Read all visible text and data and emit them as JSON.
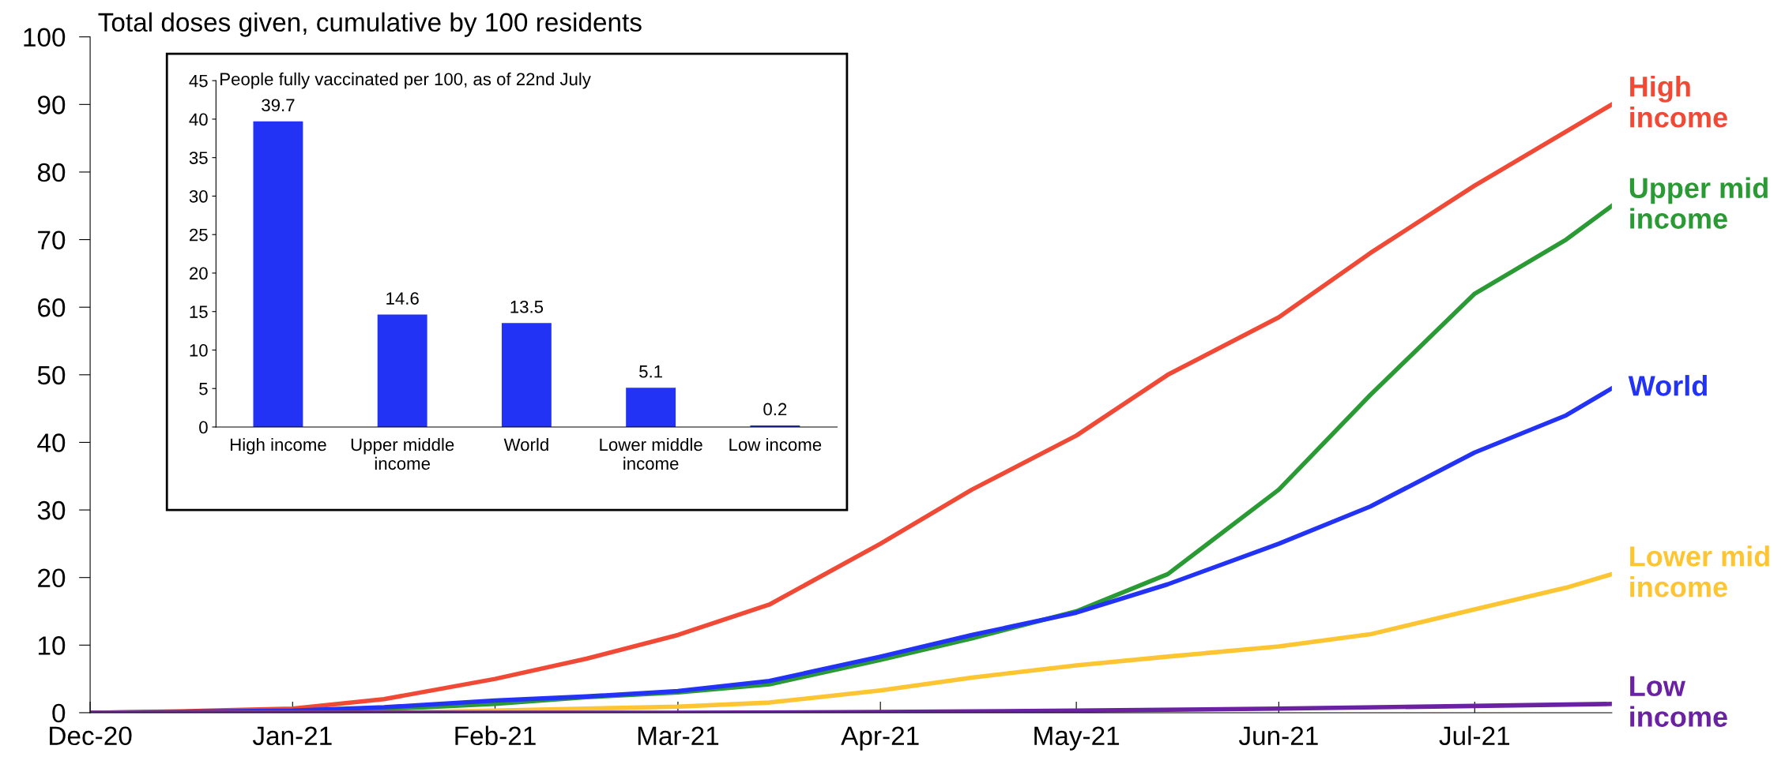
{
  "chart_data": [
    {
      "type": "line",
      "title": "Total doses given, cumulative by 100 residents",
      "xlim": [
        "2020-12-01",
        "2021-07-22"
      ],
      "xticks": [
        {
          "value": "2020-12-01",
          "label": "Dec-20"
        },
        {
          "value": "2021-01-01",
          "label": "Jan-21"
        },
        {
          "value": "2021-02-01",
          "label": "Feb-21"
        },
        {
          "value": "2021-03-01",
          "label": "Mar-21"
        },
        {
          "value": "2021-04-01",
          "label": "Apr-21"
        },
        {
          "value": "2021-05-01",
          "label": "May-21"
        },
        {
          "value": "2021-06-01",
          "label": "Jun-21"
        },
        {
          "value": "2021-07-01",
          "label": "Jul-21"
        }
      ],
      "ylim": [
        0,
        100
      ],
      "yticks": [
        0,
        10,
        20,
        30,
        40,
        50,
        60,
        70,
        80,
        90,
        100
      ],
      "grid": false,
      "marker": "none",
      "line_style": "solid",
      "series": [
        {
          "name": "High\nincome",
          "color": "#f04a37",
          "x": [
            "2020-12-01",
            "2020-12-15",
            "2021-01-01",
            "2021-01-15",
            "2021-02-01",
            "2021-02-15",
            "2021-03-01",
            "2021-03-15",
            "2021-04-01",
            "2021-04-15",
            "2021-05-01",
            "2021-05-15",
            "2021-06-01",
            "2021-06-15",
            "2021-07-01",
            "2021-07-15",
            "2021-07-22"
          ],
          "values": [
            0,
            0.2,
            0.6,
            2,
            5,
            8,
            11.5,
            16,
            25,
            33,
            41,
            50,
            58.5,
            68,
            78,
            86,
            90
          ]
        },
        {
          "name": "Upper mid\nincome",
          "color": "#2a9a34",
          "x": [
            "2020-12-01",
            "2021-01-01",
            "2021-01-15",
            "2021-02-01",
            "2021-02-15",
            "2021-03-01",
            "2021-03-15",
            "2021-04-01",
            "2021-04-15",
            "2021-05-01",
            "2021-05-15",
            "2021-06-01",
            "2021-06-15",
            "2021-07-01",
            "2021-07-15",
            "2021-07-22"
          ],
          "values": [
            0,
            0.1,
            0.5,
            1.3,
            2.3,
            3,
            4.2,
            7.8,
            11,
            15,
            20.5,
            33,
            47,
            62,
            70,
            75
          ]
        },
        {
          "name": "World",
          "color": "#2233f5",
          "x": [
            "2020-12-01",
            "2021-01-01",
            "2021-01-15",
            "2021-02-01",
            "2021-02-15",
            "2021-03-01",
            "2021-03-15",
            "2021-04-01",
            "2021-04-15",
            "2021-05-01",
            "2021-05-15",
            "2021-06-01",
            "2021-06-15",
            "2021-07-01",
            "2021-07-15",
            "2021-07-22"
          ],
          "values": [
            0,
            0.3,
            0.8,
            1.8,
            2.4,
            3.2,
            4.7,
            8.3,
            11.5,
            14.8,
            19,
            25,
            30.5,
            38.5,
            44,
            48
          ]
        },
        {
          "name": "Lower mid\nincome",
          "color": "#fcc531",
          "x": [
            "2020-12-01",
            "2021-01-15",
            "2021-02-01",
            "2021-03-01",
            "2021-03-15",
            "2021-04-01",
            "2021-04-15",
            "2021-05-01",
            "2021-05-15",
            "2021-06-01",
            "2021-06-15",
            "2021-07-01",
            "2021-07-15",
            "2021-07-22"
          ],
          "values": [
            0,
            0,
            0.3,
            0.9,
            1.5,
            3.3,
            5.2,
            7,
            8.3,
            9.8,
            11.6,
            15.3,
            18.5,
            20.5
          ]
        },
        {
          "name": "Low\nincome",
          "color": "#6a22a3",
          "x": [
            "2020-12-01",
            "2021-03-01",
            "2021-04-01",
            "2021-05-01",
            "2021-06-01",
            "2021-07-01",
            "2021-07-22"
          ],
          "values": [
            0,
            0,
            0.1,
            0.3,
            0.6,
            1.0,
            1.3
          ]
        }
      ]
    },
    {
      "type": "bar",
      "title": "People fully vaccinated per 100, as of 22nd July",
      "categories": [
        "High income",
        "Upper middle\nincome",
        "World",
        "Lower middle\nincome",
        "Low income"
      ],
      "values": [
        39.7,
        14.6,
        13.5,
        5.1,
        0.2
      ],
      "color": "#2233f5",
      "data_labels": true,
      "ylim": [
        0,
        45
      ],
      "yticks": [
        0,
        5,
        10,
        15,
        20,
        25,
        30,
        35,
        40,
        45
      ],
      "grid": false
    }
  ]
}
